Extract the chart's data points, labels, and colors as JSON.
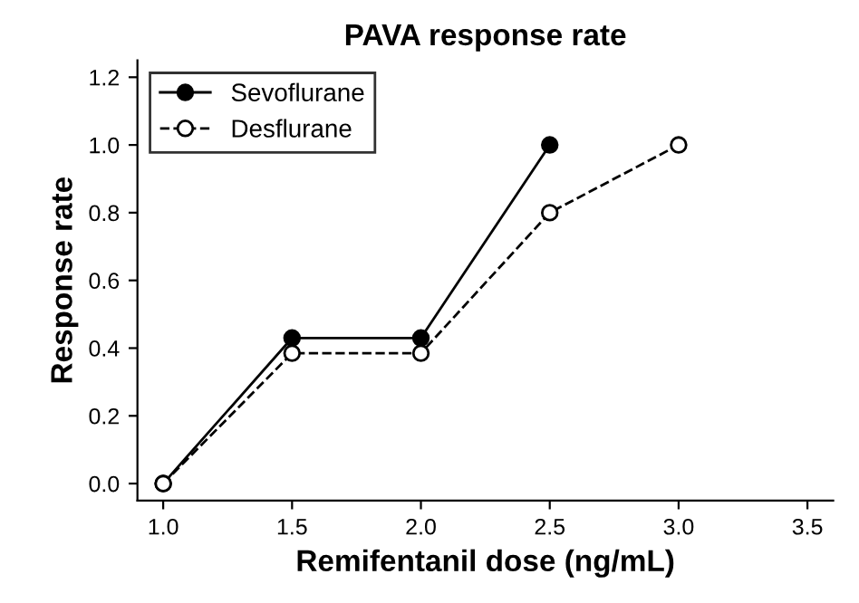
{
  "chart_data": {
    "type": "line",
    "title": "PAVA response rate",
    "xlabel": "Remifentanil dose (ng/mL)",
    "ylabel": "Response rate",
    "x": [
      1.0,
      1.5,
      2.0,
      2.5,
      3.0
    ],
    "series": [
      {
        "name": "Sevoflurane",
        "color": "#000000",
        "values": [
          0.0,
          0.43,
          0.43,
          1.0,
          null
        ],
        "marker": "circle",
        "line_style": "solid"
      },
      {
        "name": "Desflurane",
        "color": "#000000",
        "values": [
          0.0,
          0.385,
          0.385,
          0.8,
          1.0
        ],
        "marker": "circle",
        "line_style": "dashed"
      }
    ],
    "xlim": [
      0.9,
      3.6
    ],
    "xticks": [
      {
        "value": 1.0,
        "label": "1.0"
      },
      {
        "value": 1.5,
        "label": "1.5"
      },
      {
        "value": 2.0,
        "label": "2.0"
      },
      {
        "value": 2.5,
        "label": "2.5"
      },
      {
        "value": 3.0,
        "label": "3.0"
      },
      {
        "value": 3.5,
        "label": "3.5"
      }
    ],
    "ylim": [
      -0.05,
      1.25
    ],
    "yticks": [
      {
        "value": 0.0,
        "label": "0.0"
      },
      {
        "value": 0.2,
        "label": "0.2"
      },
      {
        "value": 0.4,
        "label": "0.4"
      },
      {
        "value": 0.6,
        "label": "0.6"
      },
      {
        "value": 0.8,
        "label": "0.8"
      },
      {
        "value": 1.0,
        "label": "1.0"
      },
      {
        "value": 1.2,
        "label": "1.2"
      }
    ],
    "grid": false,
    "legend": "top left"
  }
}
